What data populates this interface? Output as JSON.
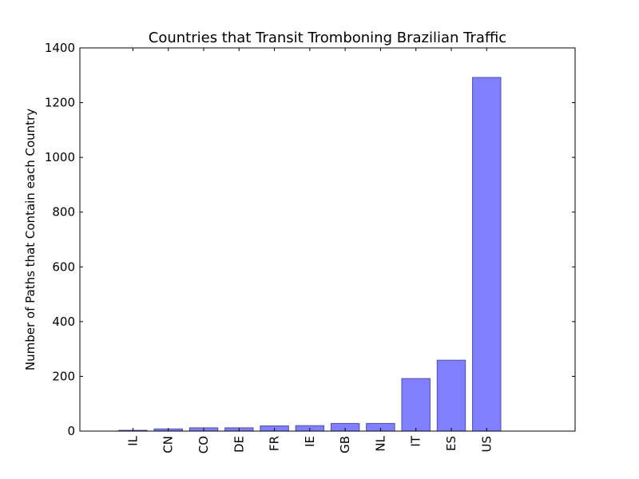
{
  "chart_data": {
    "type": "bar",
    "title": "Countries that Transit Tromboning Brazilian  Traffic",
    "xlabel": "",
    "ylabel": "Number of Paths that Contain each Country",
    "categories": [
      "IL",
      "CN",
      "CO",
      "DE",
      "FR",
      "IE",
      "GB",
      "NL",
      "IT",
      "ES",
      "US"
    ],
    "values": [
      3,
      8,
      12,
      12,
      19,
      20,
      28,
      28,
      192,
      259,
      1292
    ],
    "ylim": [
      0,
      1400
    ],
    "yticks": [
      "0",
      "200",
      "400",
      "600",
      "800",
      "1000",
      "1200",
      "1400"
    ],
    "bar_color": "#8080ff",
    "edge_color": "#5050a0",
    "grid": false,
    "legend": "none"
  }
}
